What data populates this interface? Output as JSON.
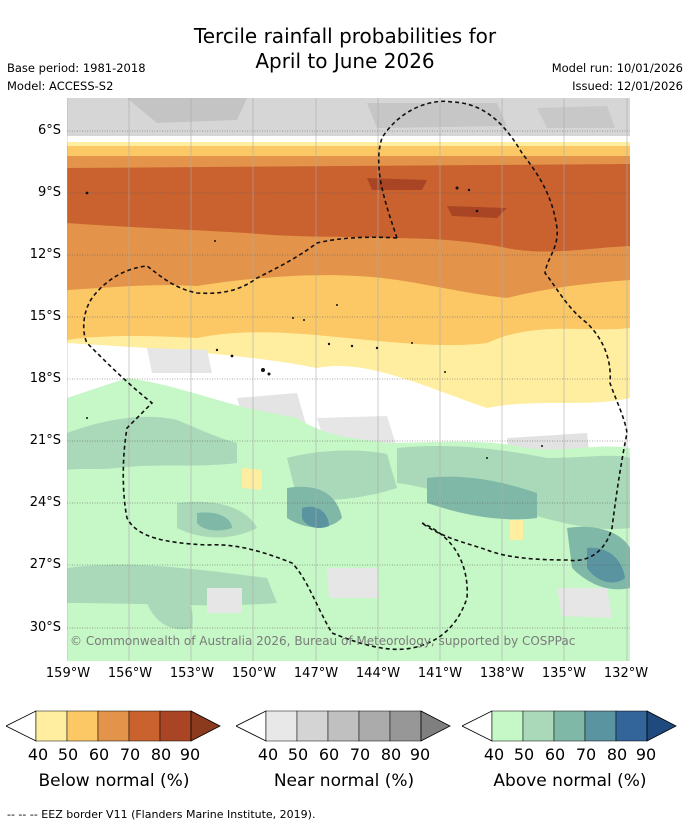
{
  "title_line1": "Tercile rainfall probabilities for",
  "title_line2": "April to June 2026",
  "base_period": "Base period: 1981-2018",
  "model": "Model: ACCESS-S2",
  "model_run": "Model run: 10/01/2026",
  "issued": "Issued: 12/01/2026",
  "copyright": "© Commonwealth of Australia 2026, Bureau of Meteorology, supported by COSPPac",
  "lat_labels": [
    "6°S",
    "9°S",
    "12°S",
    "15°S",
    "18°S",
    "21°S",
    "24°S",
    "27°S",
    "30°S"
  ],
  "lon_labels": [
    "159°W",
    "156°W",
    "153°W",
    "150°W",
    "147°W",
    "144°W",
    "141°W",
    "138°W",
    "135°W",
    "132°W"
  ],
  "colorbars": [
    {
      "label": "Below normal (%)",
      "ticks": [
        "40",
        "50",
        "60",
        "70",
        "80",
        "90"
      ],
      "colors": [
        "#ffeea0",
        "#fbc865",
        "#e3934a",
        "#c9622f",
        "#a94524",
        "#8b3a1e"
      ]
    },
    {
      "label": "Near normal (%)",
      "ticks": [
        "40",
        "50",
        "60",
        "70",
        "80",
        "90"
      ],
      "colors": [
        "#e8e8e8",
        "#d4d4d4",
        "#c0c0c0",
        "#ababab",
        "#979797",
        "#7f7f7f"
      ]
    },
    {
      "label": "Above normal (%)",
      "ticks": [
        "40",
        "50",
        "60",
        "70",
        "80",
        "90"
      ],
      "colors": [
        "#c6f7c6",
        "#a9d9b8",
        "#80b8a8",
        "#5a94a0",
        "#33659a",
        "#1e4a7e"
      ]
    }
  ],
  "legend_footer": "-- -- -- EEZ border V11 (Flanders Marine Institute, 2019)."
}
